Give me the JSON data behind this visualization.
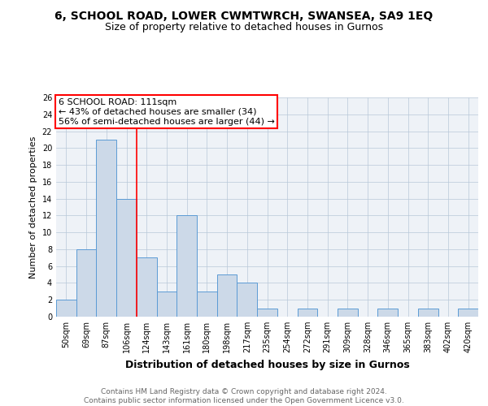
{
  "title1": "6, SCHOOL ROAD, LOWER CWMTWRCH, SWANSEA, SA9 1EQ",
  "title2": "Size of property relative to detached houses in Gurnos",
  "xlabel": "Distribution of detached houses by size in Gurnos",
  "ylabel": "Number of detached properties",
  "categories": [
    "50sqm",
    "69sqm",
    "87sqm",
    "106sqm",
    "124sqm",
    "143sqm",
    "161sqm",
    "180sqm",
    "198sqm",
    "217sqm",
    "235sqm",
    "254sqm",
    "272sqm",
    "291sqm",
    "309sqm",
    "328sqm",
    "346sqm",
    "365sqm",
    "383sqm",
    "402sqm",
    "420sqm"
  ],
  "values": [
    2,
    8,
    21,
    14,
    7,
    3,
    12,
    3,
    5,
    4,
    1,
    0,
    1,
    0,
    1,
    0,
    1,
    0,
    1,
    0,
    1
  ],
  "bar_color": "#ccd9e8",
  "bar_edge_color": "#5b9bd5",
  "bar_linewidth": 0.7,
  "red_line_x": 3.5,
  "annotation_text": "6 SCHOOL ROAD: 111sqm\n← 43% of detached houses are smaller (34)\n56% of semi-detached houses are larger (44) →",
  "annotation_box_color": "white",
  "annotation_box_edge_color": "red",
  "annotation_fontsize": 8,
  "ylim": [
    0,
    26
  ],
  "yticks": [
    0,
    2,
    4,
    6,
    8,
    10,
    12,
    14,
    16,
    18,
    20,
    22,
    24,
    26
  ],
  "grid_color": "#b8c8d8",
  "background_color": "#eef2f7",
  "footer_text": "Contains HM Land Registry data © Crown copyright and database right 2024.\nContains public sector information licensed under the Open Government Licence v3.0.",
  "title1_fontsize": 10,
  "title2_fontsize": 9,
  "xlabel_fontsize": 9,
  "ylabel_fontsize": 8,
  "footer_fontsize": 6.5,
  "tick_fontsize": 7
}
